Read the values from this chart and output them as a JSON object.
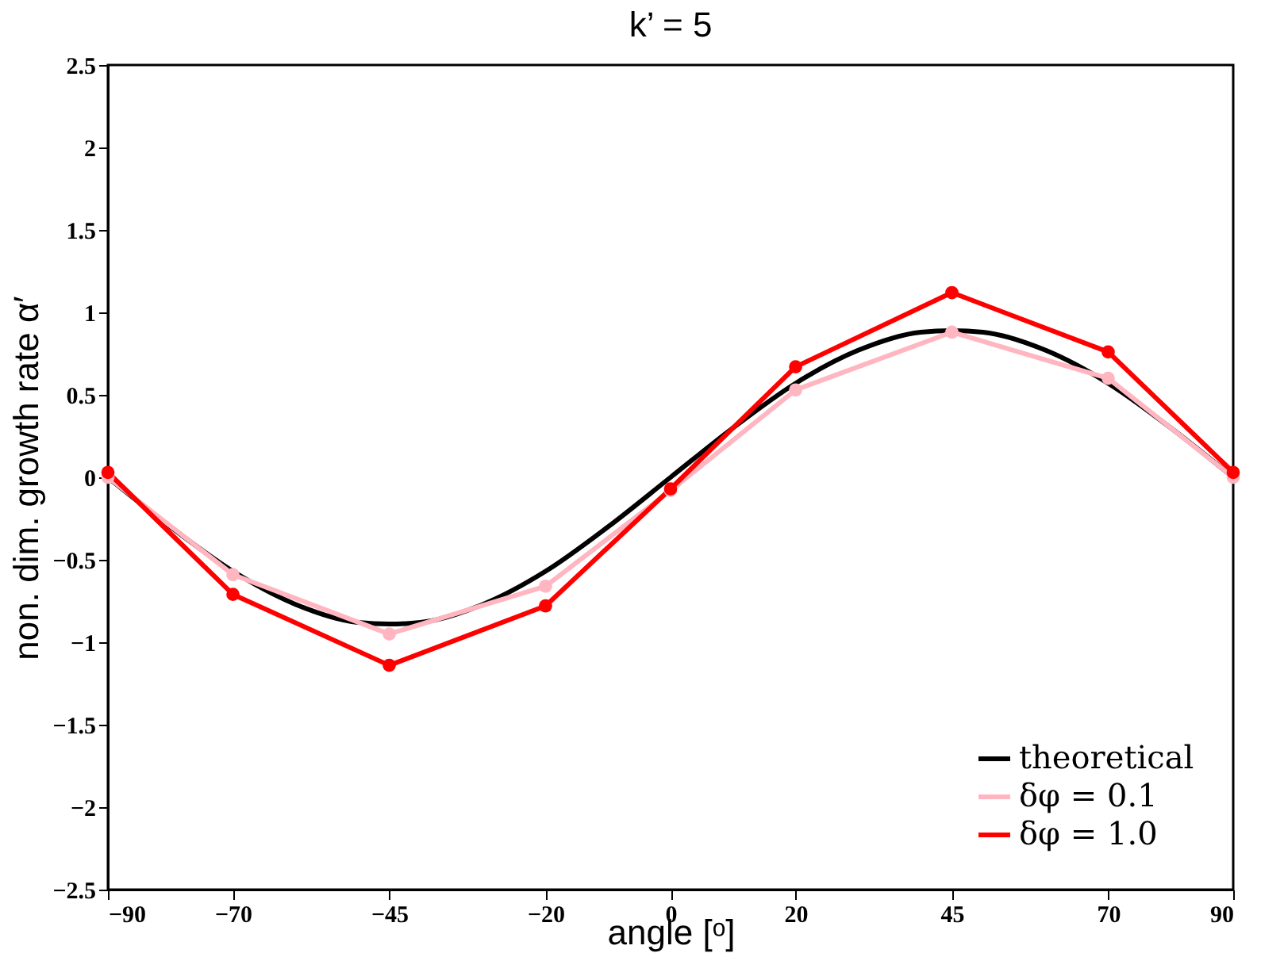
{
  "chart_data": {
    "type": "line",
    "title": "k’ = 5",
    "xlabel": "angle [ᵒ]",
    "ylabel": "non. dim. growth rate α′",
    "x": [
      -90,
      -70,
      -45,
      -20,
      0,
      20,
      45,
      70,
      90
    ],
    "xlim": [
      -90,
      90
    ],
    "xticks": [
      -90,
      -70,
      -45,
      -20,
      0,
      20,
      45,
      70,
      90
    ],
    "ylim": [
      -2.5,
      2.5
    ],
    "yticks": [
      -2.5,
      -2,
      -1.5,
      -1,
      -0.5,
      0,
      0.5,
      1,
      1.5,
      2,
      2.5
    ],
    "grid": false,
    "legend": "bottom right",
    "line_style": "solid",
    "series": [
      {
        "name": "theoretical",
        "color": "#000000",
        "marker": "none",
        "x": [
          -90,
          -80,
          -70,
          -60,
          -50,
          -45,
          -40,
          -30,
          -20,
          -10,
          0,
          10,
          20,
          30,
          40,
          45,
          50,
          60,
          70,
          80,
          90
        ],
        "values": [
          0,
          -0.3,
          -0.57,
          -0.77,
          -0.88,
          -0.89,
          -0.88,
          -0.77,
          -0.57,
          -0.3,
          0,
          0.3,
          0.57,
          0.77,
          0.88,
          0.89,
          0.88,
          0.77,
          0.57,
          0.3,
          0
        ]
      },
      {
        "name": "δφ = 0.1",
        "color": "#ffb6c1",
        "marker": "circle",
        "values": [
          0.0,
          -0.59,
          -0.95,
          -0.66,
          -0.08,
          0.53,
          0.88,
          0.6,
          0.0
        ]
      },
      {
        "name": "δφ = 1.0",
        "color": "#ff0000",
        "marker": "circle",
        "values": [
          0.03,
          -0.71,
          -1.14,
          -0.78,
          -0.07,
          0.67,
          1.12,
          0.76,
          0.03
        ]
      }
    ]
  }
}
